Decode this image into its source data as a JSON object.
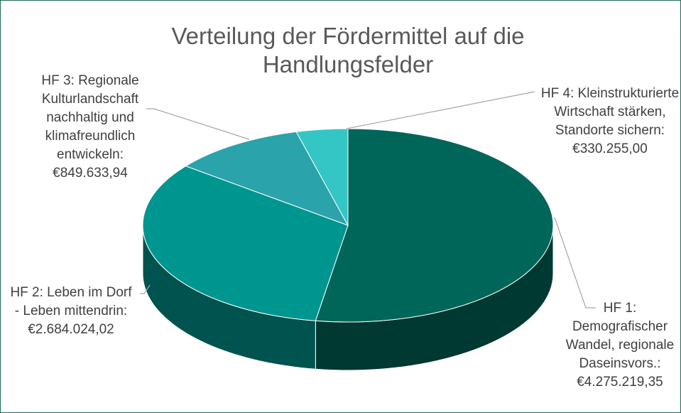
{
  "chart_data": {
    "type": "pie",
    "title": "Verteilung der Fördermittel auf die Handlungsfelder",
    "categories": [
      "HF 1: Demografischer Wandel, regionale Daseinsvors.:",
      "HF 2: Leben im Dorf - Leben mittendrin:",
      "HF 3: Regionale Kulturlandschaft nachhaltig und klimafreundlich entwickeln:",
      "HF 4: Kleinstrukturierte Wirtschaft stärken, Standorte sichern:"
    ],
    "values": [
      4275219.35,
      2684024.02,
      849633.94,
      330255.0
    ],
    "value_labels": [
      "€4.275.219,35",
      "€2.684.024,02",
      "€849.633,94",
      "€330.255,00"
    ],
    "colors": [
      "#00665a",
      "#009690",
      "#2aa3ab",
      "#33c6c4"
    ]
  }
}
